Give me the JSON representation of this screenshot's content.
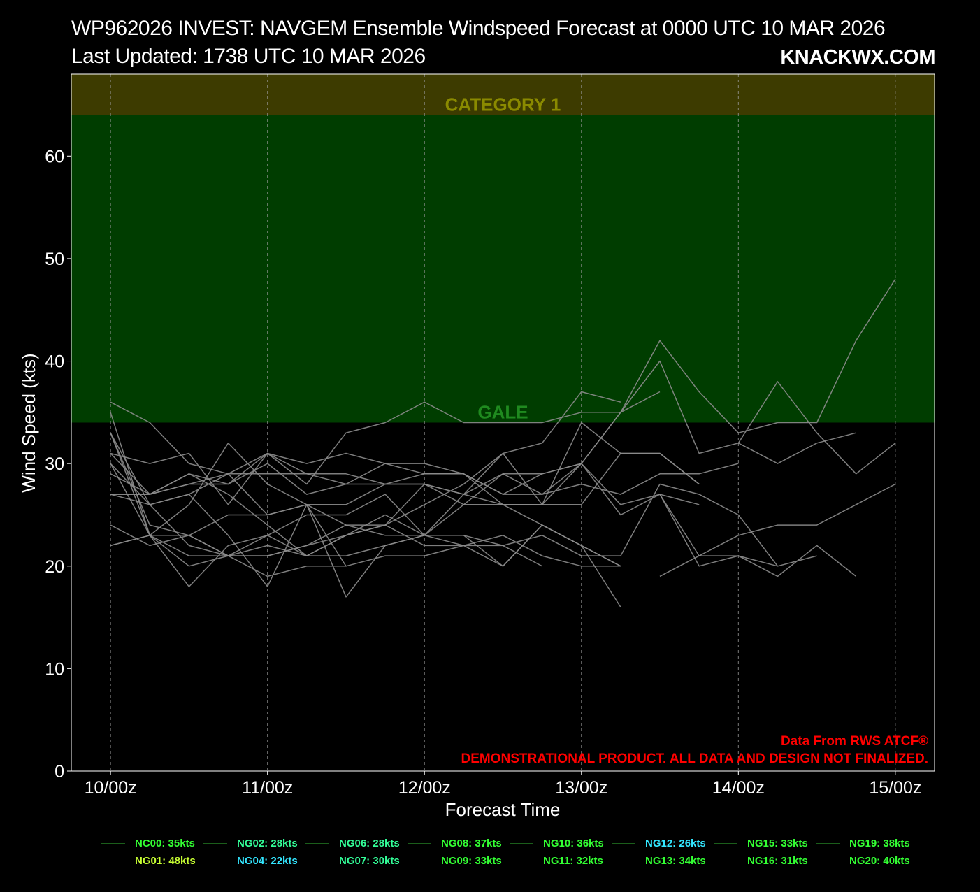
{
  "title_line1": "WP962026 INVEST: NAVGEM Ensemble Windspeed Forecast at 0000 UTC 10 MAR 2026",
  "title_line2": "Last Updated: 1738 UTC 10 MAR 2026",
  "brand": "KNACKWX.COM",
  "notes": {
    "source": "Data From RWS ATCF®",
    "disclaimer": "DEMONSTRATIONAL PRODUCT. ALL DATA AND DESIGN NOT FINALIZED."
  },
  "colors": {
    "background": "#000000",
    "gale_band": "#003d00",
    "cat1_band": "#3d3b00",
    "gale_text": "#1f8a1f",
    "cat1_text": "#8a8a00",
    "member_line": "#8c8c8c",
    "note_text": "#ff0000",
    "legend_green": "#33ff33",
    "legend_cyan": "#33e6ff",
    "legend_yellow": "#c8ff33"
  },
  "chart_data": {
    "type": "line",
    "xlabel": "Forecast Time",
    "ylabel": "Wind Speed (kts)",
    "ylim": [
      0,
      68
    ],
    "xlim_hours": [
      -6,
      126
    ],
    "x_ticks": [
      {
        "hour": 0,
        "label": "10/00z"
      },
      {
        "hour": 24,
        "label": "11/00z"
      },
      {
        "hour": 48,
        "label": "12/00z"
      },
      {
        "hour": 72,
        "label": "13/00z"
      },
      {
        "hour": 96,
        "label": "14/00z"
      },
      {
        "hour": 120,
        "label": "15/00z"
      }
    ],
    "y_ticks": [
      0,
      10,
      20,
      30,
      40,
      50,
      60
    ],
    "grid_x": true,
    "thresholds": [
      {
        "label": "GALE",
        "from": 34,
        "to": 64
      },
      {
        "label": "CATEGORY 1",
        "from": 64,
        "to": 68
      }
    ],
    "legend_position": "bottom",
    "legend": [
      {
        "label": "NC00: 35kts",
        "color": "#33ff33"
      },
      {
        "label": "NG01: 48kts",
        "color": "#c8ff33"
      },
      {
        "label": "NG02: 28kts",
        "color": "#33ff99"
      },
      {
        "label": "NG04: 22kts",
        "color": "#33e6ff"
      },
      {
        "label": "NG06: 28kts",
        "color": "#33ff99"
      },
      {
        "label": "NG07: 30kts",
        "color": "#33ff99"
      },
      {
        "label": "NG08: 37kts",
        "color": "#33ff33"
      },
      {
        "label": "NG09: 33kts",
        "color": "#33ff33"
      },
      {
        "label": "NG10: 36kts",
        "color": "#33ff33"
      },
      {
        "label": "NG11: 32kts",
        "color": "#33ff33"
      },
      {
        "label": "NG12: 26kts",
        "color": "#33e6ff"
      },
      {
        "label": "NG13: 34kts",
        "color": "#33ff33"
      },
      {
        "label": "NG15: 33kts",
        "color": "#33ff33"
      },
      {
        "label": "NG16: 31kts",
        "color": "#33ff33"
      },
      {
        "label": "NG19: 38kts",
        "color": "#33ff33"
      },
      {
        "label": "NG20: 40kts",
        "color": "#33ff33"
      }
    ],
    "series": [
      {
        "x": [
          0,
          6,
          12,
          18,
          24,
          30,
          36,
          42,
          48,
          54,
          60,
          66,
          72,
          78,
          84,
          90,
          96,
          102,
          108,
          114,
          120
        ],
        "y": [
          33,
          26,
          27,
          29,
          31,
          30,
          31,
          30,
          29,
          29,
          26,
          26,
          26,
          31,
          31,
          28,
          null,
          null,
          null,
          null,
          null
        ]
      },
      {
        "x": [
          0,
          6,
          12,
          18,
          24,
          30,
          36,
          42,
          48,
          54,
          60,
          66,
          72,
          78,
          84,
          90,
          96,
          102,
          108,
          114,
          120
        ],
        "y": [
          35,
          23,
          18,
          22,
          23,
          25,
          25,
          27,
          23,
          26,
          29,
          29,
          30,
          35,
          42,
          37,
          33,
          34,
          34,
          42,
          48
        ]
      },
      {
        "x": [
          0,
          6,
          12,
          18,
          24,
          30,
          36,
          42,
          48,
          54,
          60,
          66,
          72,
          78,
          84,
          90,
          96,
          102,
          108,
          114,
          120
        ],
        "y": [
          30,
          23,
          21,
          21,
          21,
          22,
          23,
          24,
          22,
          22,
          22,
          20,
          null,
          null,
          null,
          null,
          null,
          null,
          null,
          null,
          null
        ]
      },
      {
        "x": [
          0,
          6,
          12,
          18,
          24,
          30,
          36,
          42,
          48,
          54,
          60,
          66,
          72,
          78,
          84,
          90,
          96,
          102,
          108,
          114,
          120
        ],
        "y": [
          24,
          22,
          23,
          21,
          22,
          21,
          23,
          25,
          23,
          23,
          20,
          24,
          22,
          20,
          null,
          null,
          null,
          null,
          null,
          null,
          null
        ]
      },
      {
        "x": [
          0,
          6,
          12,
          18,
          24,
          30,
          36,
          42,
          48,
          54,
          60,
          66,
          72,
          78,
          84,
          90,
          96,
          102,
          108,
          114,
          120
        ],
        "y": [
          27,
          27,
          28,
          29,
          25,
          26,
          26,
          28,
          28,
          26,
          26,
          24,
          22,
          20,
          null,
          null,
          null,
          null,
          null,
          null,
          null
        ]
      },
      {
        "x": [
          0,
          6,
          12,
          18,
          24,
          30,
          36,
          42,
          48,
          54,
          60,
          66,
          72,
          78,
          84,
          90,
          96,
          102,
          108,
          114,
          120
        ],
        "y": [
          33,
          24,
          23,
          21,
          21,
          22,
          24,
          24,
          28,
          27,
          29,
          27,
          28,
          27,
          29,
          29,
          30,
          null,
          null,
          null,
          null
        ]
      },
      {
        "x": [
          0,
          6,
          12,
          18,
          24,
          30,
          36,
          42,
          48,
          54,
          60,
          66,
          72,
          78,
          84,
          90,
          96,
          102,
          108,
          114,
          120
        ],
        "y": [
          36,
          34,
          30,
          29,
          29,
          29,
          28,
          28,
          29,
          29,
          27,
          27,
          30,
          35,
          37,
          null,
          null,
          null,
          null,
          null,
          null
        ]
      },
      {
        "x": [
          0,
          6,
          12,
          18,
          24,
          30,
          36,
          42,
          48,
          54,
          60,
          66,
          72,
          78,
          84,
          90,
          96,
          102,
          108,
          114,
          120
        ],
        "y": [
          22,
          23,
          23,
          25,
          25,
          26,
          24,
          23,
          23,
          27,
          31,
          32,
          37,
          36,
          null,
          null,
          null,
          null,
          null,
          null,
          null
        ]
      },
      {
        "x": [
          0,
          6,
          12,
          18,
          24,
          30,
          36,
          42,
          48,
          54,
          60,
          66,
          72,
          78,
          84,
          90,
          96,
          102,
          108,
          114,
          120
        ],
        "y": [
          27,
          27,
          29,
          28,
          31,
          28,
          33,
          34,
          36,
          34,
          34,
          34,
          35,
          35,
          40,
          31,
          32,
          30,
          32,
          33,
          null
        ]
      },
      {
        "x": [
          0,
          6,
          12,
          18,
          24,
          30,
          36,
          42,
          48,
          54,
          60,
          66,
          72,
          78,
          84,
          90,
          96,
          102,
          108,
          114,
          120
        ],
        "y": [
          31,
          30,
          31,
          26,
          31,
          29,
          29,
          28,
          28,
          27,
          26,
          26,
          30,
          25,
          27,
          21,
          21,
          19,
          22,
          19,
          null
        ]
      },
      {
        "x": [
          0,
          6,
          12,
          18,
          24,
          30,
          36,
          42,
          48,
          54,
          60,
          66,
          72,
          78,
          84,
          90,
          96,
          102,
          108,
          114,
          120
        ],
        "y": [
          22,
          23,
          20,
          21,
          23,
          21,
          23,
          24,
          26,
          28,
          31,
          26,
          34,
          31,
          31,
          28,
          null,
          null,
          null,
          null,
          null
        ]
      },
      {
        "x": [
          0,
          6,
          12,
          18,
          24,
          30,
          36,
          42,
          48,
          54,
          60,
          66,
          72,
          78,
          84,
          90,
          96,
          102,
          108,
          114,
          120
        ],
        "y": [
          29,
          27,
          29,
          27,
          24,
          21,
          21,
          22,
          23,
          22,
          20,
          24,
          22,
          16,
          null,
          null,
          null,
          null,
          null,
          null,
          null
        ]
      },
      {
        "x": [
          0,
          6,
          12,
          18,
          24,
          30,
          36,
          42,
          48,
          54,
          60,
          66,
          72,
          78,
          84,
          90,
          96,
          102,
          108,
          114,
          120
        ],
        "y": [
          33,
          23,
          26,
          32,
          28,
          26,
          20,
          21,
          21,
          22,
          23,
          21,
          20,
          20,
          null,
          null,
          null,
          null,
          null,
          null,
          null
        ]
      },
      {
        "x": [
          0,
          6,
          12,
          18,
          24,
          30,
          36,
          42,
          48,
          54,
          60,
          66,
          72,
          78,
          84,
          90,
          96,
          102,
          108,
          114,
          120
        ],
        "y": [
          31,
          27,
          28,
          28,
          30,
          27,
          28,
          30,
          30,
          29,
          27,
          29,
          30,
          26,
          27,
          26,
          null,
          null,
          null,
          null,
          null
        ]
      },
      {
        "x": [
          0,
          6,
          12,
          18,
          24,
          30,
          36,
          42,
          48,
          54,
          60,
          66,
          72,
          78,
          84,
          90,
          96,
          102,
          108,
          114,
          120
        ],
        "y": [
          27,
          26,
          27,
          23,
          18,
          26,
          17,
          22,
          23,
          23,
          22,
          23,
          21,
          21,
          28,
          27,
          25,
          20,
          21,
          null,
          null
        ]
      },
      {
        "x": [
          0,
          6,
          12,
          18,
          24,
          30,
          36,
          42,
          48,
          54,
          60,
          66,
          72,
          78,
          84,
          90,
          96,
          102,
          108,
          114,
          120
        ],
        "y": [
          30,
          26,
          22,
          21,
          19,
          20,
          20,
          null,
          null,
          null,
          null,
          null,
          null,
          null,
          null,
          null,
          null,
          null,
          null,
          null,
          null
        ]
      },
      {
        "x": [
          0,
          6,
          12,
          18,
          24,
          30,
          36,
          42,
          48,
          54,
          60,
          66,
          72,
          78,
          84,
          90,
          96,
          102,
          108,
          114,
          120
        ],
        "y": [
          null,
          null,
          null,
          null,
          null,
          null,
          null,
          null,
          null,
          null,
          null,
          null,
          null,
          null,
          19,
          21,
          23,
          24,
          24,
          26,
          28
        ]
      },
      {
        "x": [
          0,
          6,
          12,
          18,
          24,
          30,
          36,
          42,
          48,
          54,
          60,
          66,
          72,
          78,
          84,
          90,
          96,
          102,
          108,
          114,
          120
        ],
        "y": [
          null,
          null,
          null,
          null,
          null,
          null,
          null,
          null,
          null,
          null,
          null,
          null,
          null,
          null,
          27,
          20,
          21,
          20,
          null,
          null,
          null
        ]
      },
      {
        "x": [
          0,
          6,
          12,
          18,
          24,
          30,
          36,
          42,
          48,
          54,
          60,
          66,
          72,
          78,
          84,
          90,
          96,
          102,
          108,
          114,
          120
        ],
        "y": [
          null,
          null,
          null,
          null,
          null,
          null,
          null,
          null,
          null,
          null,
          null,
          null,
          null,
          null,
          null,
          null,
          32,
          38,
          33,
          29,
          32
        ]
      }
    ]
  }
}
